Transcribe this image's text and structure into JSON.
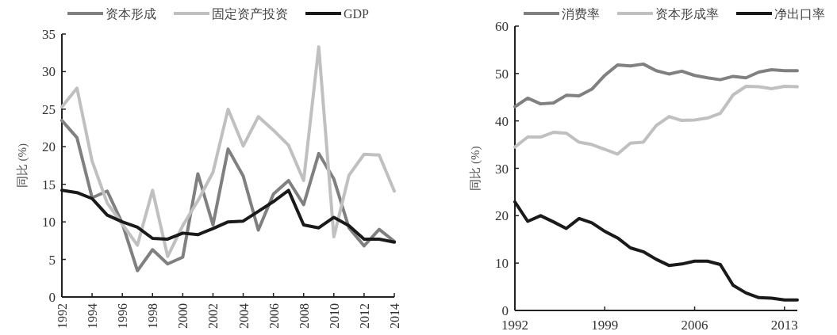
{
  "chart_data": [
    {
      "type": "line",
      "ylabel": "同比 (%)",
      "legend": "top",
      "x": [
        1992,
        1993,
        1994,
        1995,
        1996,
        1997,
        1998,
        1999,
        2000,
        2001,
        2002,
        2003,
        2004,
        2005,
        2006,
        2007,
        2008,
        2009,
        2010,
        2011,
        2012,
        2013,
        2014
      ],
      "xlim": [
        1992,
        2014
      ],
      "xticks": [
        1992,
        1994,
        1996,
        1998,
        2000,
        2002,
        2004,
        2006,
        2008,
        2010,
        2012,
        2014
      ],
      "ylim": [
        0,
        35
      ],
      "yticks": [
        0,
        5,
        10,
        15,
        20,
        25,
        30,
        35
      ],
      "series": [
        {
          "name": "资本形成",
          "color": "#808080",
          "values": [
            23.5,
            21.2,
            13.2,
            14.1,
            9.8,
            3.5,
            6.3,
            4.4,
            5.3,
            16.4,
            9.6,
            19.7,
            16.1,
            8.9,
            13.7,
            15.5,
            12.3,
            19.1,
            15.7,
            9.2,
            6.8,
            9.0,
            7.4
          ]
        },
        {
          "name": "固定资产投资",
          "color": "#c0c0c0",
          "values": [
            25.3,
            27.8,
            18.1,
            12.5,
            9.7,
            6.9,
            14.2,
            5.4,
            9.5,
            12.8,
            16.6,
            25.0,
            20.1,
            24.0,
            22.2,
            20.2,
            15.5,
            33.3,
            8.0,
            16.2,
            19.0,
            18.9,
            14.1
          ]
        },
        {
          "name": "GDP",
          "color": "#1a1a1a",
          "values": [
            14.2,
            13.9,
            13.1,
            10.9,
            10.0,
            9.3,
            7.8,
            7.7,
            8.5,
            8.3,
            9.1,
            10.0,
            10.1,
            11.4,
            12.7,
            14.2,
            9.6,
            9.2,
            10.6,
            9.5,
            7.7,
            7.7,
            7.3
          ]
        }
      ]
    },
    {
      "type": "line",
      "ylabel": "同比 (%)",
      "legend": "top",
      "x": [
        1992,
        1993,
        1994,
        1995,
        1996,
        1997,
        1998,
        1999,
        2000,
        2001,
        2002,
        2003,
        2004,
        2005,
        2006,
        2007,
        2008,
        2009,
        2010,
        2011,
        2012,
        2013,
        2014
      ],
      "xlim": [
        1992,
        2014
      ],
      "xticks": [
        1992,
        1999,
        2006,
        2013
      ],
      "ylim": [
        0,
        60
      ],
      "yticks": [
        0,
        10,
        20,
        30,
        40,
        50,
        60
      ],
      "series": [
        {
          "name": "消费率",
          "color": "#808080",
          "values": [
            43.0,
            44.8,
            43.6,
            43.8,
            45.4,
            45.3,
            46.7,
            49.6,
            51.8,
            51.6,
            52.0,
            50.6,
            49.9,
            50.5,
            49.6,
            49.1,
            48.7,
            49.4,
            49.1,
            50.3,
            50.8,
            50.6,
            50.6
          ]
        },
        {
          "name": "资本形成率",
          "color": "#c0c0c0",
          "values": [
            34.5,
            36.6,
            36.6,
            37.6,
            37.4,
            35.5,
            35.0,
            34.0,
            33.0,
            35.3,
            35.5,
            39.0,
            40.9,
            40.1,
            40.2,
            40.6,
            41.6,
            45.5,
            47.3,
            47.2,
            46.8,
            47.3,
            47.2
          ]
        },
        {
          "name": "净出口率",
          "color": "#1a1a1a",
          "values": [
            22.9,
            18.8,
            20.0,
            18.7,
            17.3,
            19.4,
            18.5,
            16.7,
            15.3,
            13.2,
            12.4,
            10.8,
            9.5,
            9.8,
            10.4,
            10.4,
            9.7,
            5.3,
            3.7,
            2.7,
            2.6,
            2.2,
            2.2
          ]
        }
      ]
    }
  ]
}
